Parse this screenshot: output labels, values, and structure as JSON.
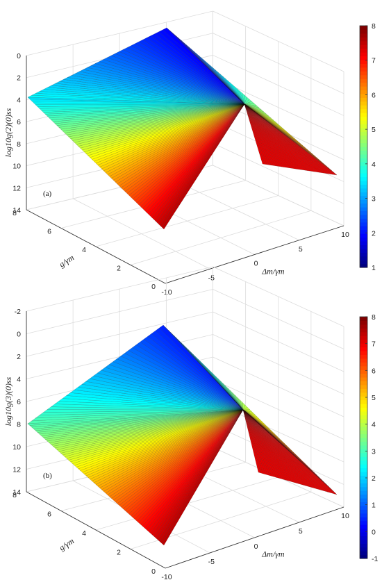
{
  "chart_data": [
    {
      "type": "surface",
      "panel_label": "(a)",
      "zlabel": "log10g(2)(0)ss",
      "xlabel": "Δm/γm",
      "ylabel": "g/γm",
      "x_ticks": [
        "-10",
        "-5",
        "0",
        "5",
        "10"
      ],
      "y_ticks": [
        "0",
        "2",
        "4",
        "6",
        "8"
      ],
      "z_ticks": [
        "0",
        "2",
        "4",
        "6",
        "8",
        "10",
        "12",
        "14"
      ],
      "xlim": [
        -10,
        10
      ],
      "ylim": [
        0,
        8
      ],
      "zlim": [
        0,
        14
      ],
      "z_axis_reversed": true,
      "colorbar": {
        "ticks": [
          "1",
          "2",
          "3",
          "4",
          "5",
          "6",
          "7",
          "8"
        ],
        "min": 1,
        "max": 8,
        "colormap": "jet"
      },
      "grid": true
    },
    {
      "type": "surface",
      "panel_label": "(b)",
      "zlabel": "log10g(3)(0)ss",
      "xlabel": "Δm/γm",
      "ylabel": "g/γm",
      "x_ticks": [
        "-10",
        "-5",
        "0",
        "5",
        "10"
      ],
      "y_ticks": [
        "0",
        "2",
        "4",
        "6",
        "8"
      ],
      "z_ticks": [
        "-2",
        "0",
        "2",
        "4",
        "6",
        "8",
        "10",
        "12",
        "14"
      ],
      "xlim": [
        -10,
        10
      ],
      "ylim": [
        0,
        8
      ],
      "zlim": [
        -2,
        14
      ],
      "z_axis_reversed": true,
      "colorbar": {
        "ticks": [
          "-1",
          "0",
          "1",
          "2",
          "3",
          "4",
          "5",
          "6",
          "7",
          "8"
        ],
        "min": -1,
        "max": 8,
        "colormap": "jet"
      },
      "grid": true
    }
  ]
}
